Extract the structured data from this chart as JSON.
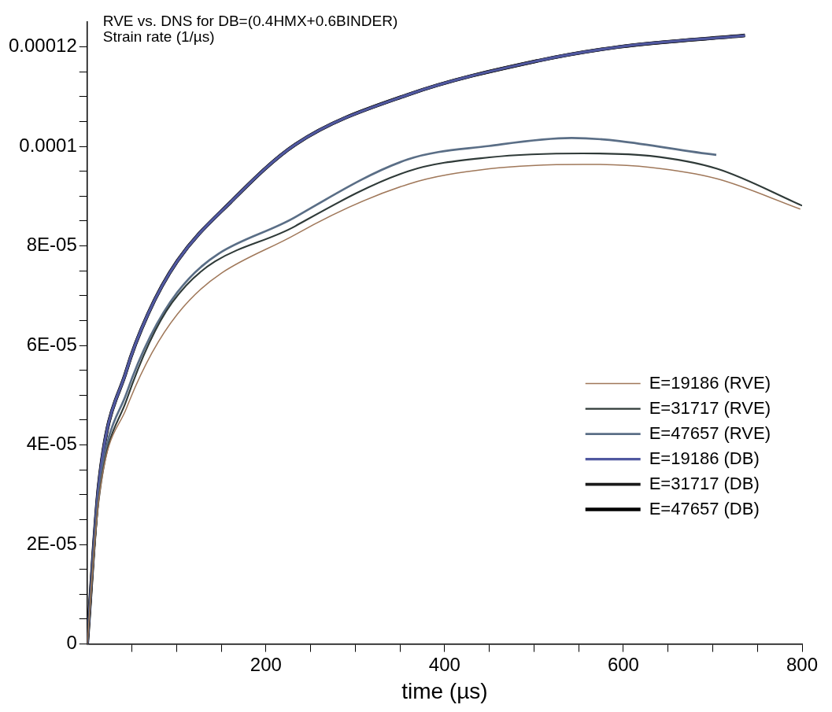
{
  "chart_data": {
    "type": "line",
    "title": "RVE vs. DNS for DB=(0.4HMX+0.6BINDER)",
    "ylabel": "Strain rate (1/µs)",
    "xlabel": "time (µs)",
    "xlim": [
      0,
      800
    ],
    "ylim": [
      0,
      0.000125
    ],
    "xticks": [
      {
        "value": 50,
        "label": null
      },
      {
        "value": 100,
        "label": null
      },
      {
        "value": 150,
        "label": null
      },
      200,
      {
        "value": 250,
        "label": null
      },
      {
        "value": 300,
        "label": null
      },
      {
        "value": 350,
        "label": null
      },
      400,
      {
        "value": 450,
        "label": null
      },
      {
        "value": 500,
        "label": null
      },
      {
        "value": 550,
        "label": null
      },
      600,
      {
        "value": 650,
        "label": null
      },
      {
        "value": 700,
        "label": null
      },
      {
        "value": 750,
        "label": null
      },
      800
    ],
    "yticks": [
      0,
      {
        "value": 5e-06,
        "label": null
      },
      {
        "value": 1e-05,
        "label": null
      },
      {
        "value": 1.5e-05,
        "label": null
      },
      {
        "value": 2e-05,
        "label": "2E-05"
      },
      {
        "value": 2.5e-05,
        "label": null
      },
      {
        "value": 3e-05,
        "label": null
      },
      {
        "value": 3.5e-05,
        "label": null
      },
      {
        "value": 4e-05,
        "label": "4E-05"
      },
      {
        "value": 4.5e-05,
        "label": null
      },
      {
        "value": 5e-05,
        "label": null
      },
      {
        "value": 5.5e-05,
        "label": null
      },
      {
        "value": 6e-05,
        "label": "6E-05"
      },
      {
        "value": 6.5e-05,
        "label": null
      },
      {
        "value": 7e-05,
        "label": null
      },
      {
        "value": 7.5e-05,
        "label": null
      },
      {
        "value": 8e-05,
        "label": "8E-05"
      },
      {
        "value": 8.5e-05,
        "label": null
      },
      {
        "value": 9e-05,
        "label": null
      },
      {
        "value": 9.5e-05,
        "label": null
      },
      0.0001,
      {
        "value": 0.000105,
        "label": null
      },
      {
        "value": 0.00011,
        "label": null
      },
      {
        "value": 0.000115,
        "label": null
      },
      0.00012
    ],
    "grid": false,
    "legend": "bottom right",
    "marker": "none",
    "line_style": "solid",
    "series": [
      {
        "name": "E=19186 (RVE)",
        "color": "#a0785a",
        "x": [
          0,
          13,
          44,
          101,
          233,
          359,
          450,
          555,
          630,
          705,
          798
        ],
        "values": [
          0,
          2.9e-05,
          4.74e-05,
          6.63e-05,
          8.23e-05,
          9.24e-05,
          9.55e-05,
          9.64e-05,
          9.58e-05,
          9.35e-05,
          8.74e-05
        ]
      },
      {
        "name": "E=31717 (RVE)",
        "color": "#2f3a38",
        "x": [
          0,
          13,
          44,
          95,
          233,
          359,
          450,
          555,
          630,
          705,
          800
        ],
        "values": [
          0,
          2.9e-05,
          4.9e-05,
          6.86e-05,
          8.4e-05,
          9.5e-05,
          9.78e-05,
          9.86e-05,
          9.81e-05,
          9.55e-05,
          8.81e-05
        ]
      },
      {
        "name": "E=47657 (RVE)",
        "color": "#5a6e86",
        "x": [
          0,
          13,
          44,
          101,
          233,
          359,
          450,
          542,
          704
        ],
        "values": [
          0,
          3e-05,
          5.04e-05,
          7.07e-05,
          8.58e-05,
          9.74e-05,
          0.0001001,
          0.0001017,
          9.83e-05
        ]
      },
      {
        "name": "E=19186 (DB)",
        "color": "#5058a0",
        "x": [
          0,
          13,
          44,
          68,
          101,
          161,
          233,
          359,
          504,
          595,
          736
        ],
        "values": [
          0,
          3.2e-05,
          5.5e-05,
          6.63e-05,
          7.7e-05,
          8.89e-05,
          0.0001004,
          0.0001104,
          0.0001172,
          0.00012,
          0.0001223
        ]
      },
      {
        "name": "E=31717 (DB)",
        "color": "#1a1a1a",
        "x": [
          0,
          13,
          44,
          68,
          101,
          161,
          233,
          359,
          504,
          595,
          736
        ],
        "values": [
          0,
          3.2e-05,
          5.5e-05,
          6.63e-05,
          7.7e-05,
          8.89e-05,
          0.0001004,
          0.0001104,
          0.0001172,
          0.00012,
          0.0001223
        ]
      },
      {
        "name": "E=47657 (DB)",
        "color": "#000000",
        "x": [
          0,
          13,
          44,
          68,
          101,
          161,
          233,
          359,
          504,
          595,
          736
        ],
        "values": [
          0,
          3.2e-05,
          5.5e-05,
          6.63e-05,
          7.7e-05,
          8.89e-05,
          0.0001004,
          0.0001104,
          0.0001172,
          0.00012,
          0.0001223
        ]
      }
    ]
  }
}
